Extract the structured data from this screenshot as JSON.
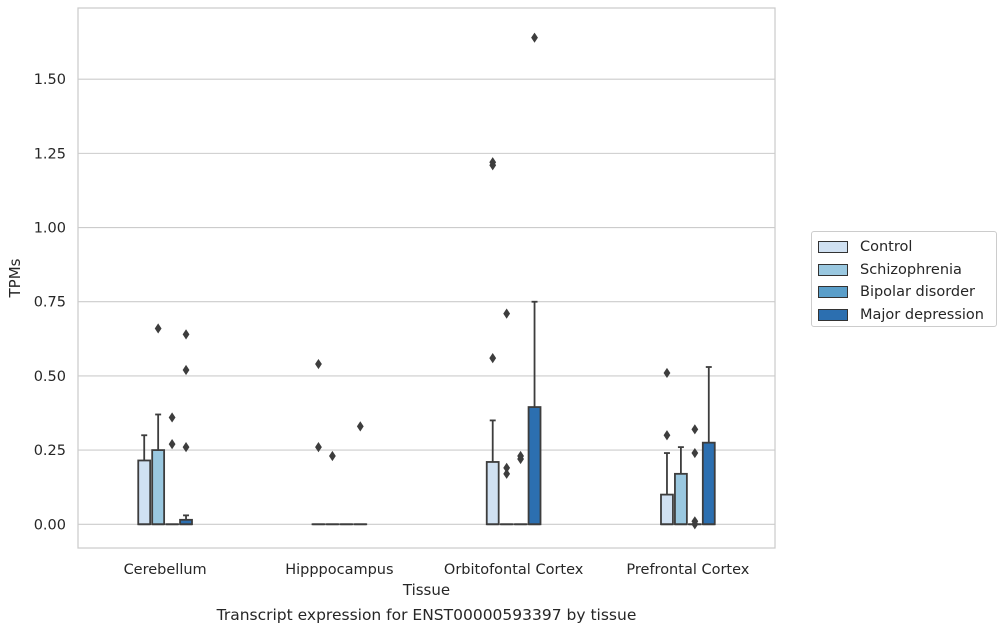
{
  "chart_data": {
    "type": "box",
    "xlabel": "Tissue",
    "ylabel": "TPMs",
    "caption": "Transcript expression for ENST00000593397 by tissue",
    "categories": [
      "Cerebellum",
      "Hipppocampus",
      "Orbitofontal Cortex",
      "Prefrontal Cortex"
    ],
    "ylim": [
      -0.08,
      1.74
    ],
    "yticks": [
      0.0,
      0.25,
      0.5,
      0.75,
      1.0,
      1.25,
      1.5
    ],
    "ytick_labels": [
      "0.00",
      "0.25",
      "0.50",
      "0.75",
      "1.00",
      "1.25",
      "1.50"
    ],
    "grid": true,
    "legend_position": "right, outside plot",
    "series": [
      {
        "name": "Control",
        "color": "#d0e1f2",
        "boxes": [
          {
            "q1": 0.0,
            "median": 0.0,
            "q3": 0.215,
            "whisker_low": 0.0,
            "whisker_high": 0.3,
            "outliers": []
          },
          {
            "q1": 0.0,
            "median": 0.0,
            "q3": 0.0,
            "whisker_low": 0.0,
            "whisker_high": 0.0,
            "outliers": [
              0.54,
              0.26
            ]
          },
          {
            "q1": 0.0,
            "median": 0.0,
            "q3": 0.21,
            "whisker_low": 0.0,
            "whisker_high": 0.35,
            "outliers": [
              1.22,
              1.21,
              0.56
            ]
          },
          {
            "q1": 0.0,
            "median": 0.0,
            "q3": 0.1,
            "whisker_low": 0.0,
            "whisker_high": 0.24,
            "outliers": [
              0.51,
              0.3
            ]
          }
        ]
      },
      {
        "name": "Schizophrenia",
        "color": "#9ac8e0",
        "boxes": [
          {
            "q1": 0.0,
            "median": 0.0,
            "q3": 0.25,
            "whisker_low": 0.0,
            "whisker_high": 0.37,
            "outliers": [
              0.66
            ]
          },
          {
            "q1": 0.0,
            "median": 0.0,
            "q3": 0.0,
            "whisker_low": 0.0,
            "whisker_high": 0.0,
            "outliers": [
              0.23
            ]
          },
          {
            "q1": 0.0,
            "median": 0.0,
            "q3": 0.0,
            "whisker_low": 0.0,
            "whisker_high": 0.0,
            "outliers": [
              0.71,
              0.19,
              0.17
            ]
          },
          {
            "q1": 0.0,
            "median": 0.0,
            "q3": 0.17,
            "whisker_low": 0.0,
            "whisker_high": 0.26,
            "outliers": []
          }
        ]
      },
      {
        "name": "Bipolar disorder",
        "color": "#5a9ec9",
        "boxes": [
          {
            "q1": 0.0,
            "median": 0.0,
            "q3": 0.0,
            "whisker_low": 0.0,
            "whisker_high": 0.0,
            "outliers": [
              0.36,
              0.27
            ]
          },
          {
            "q1": 0.0,
            "median": 0.0,
            "q3": 0.0,
            "whisker_low": 0.0,
            "whisker_high": 0.0,
            "outliers": []
          },
          {
            "q1": 0.0,
            "median": 0.0,
            "q3": 0.0,
            "whisker_low": 0.0,
            "whisker_high": 0.0,
            "outliers": [
              0.23,
              0.22
            ]
          },
          {
            "q1": 0.0,
            "median": 0.0,
            "q3": 0.0,
            "whisker_low": 0.0,
            "whisker_high": 0.0,
            "outliers": [
              0.32,
              0.24,
              0.01,
              0.0
            ]
          }
        ]
      },
      {
        "name": "Major depression",
        "color": "#2c6fb0",
        "boxes": [
          {
            "q1": 0.0,
            "median": 0.0,
            "q3": 0.015,
            "whisker_low": 0.0,
            "whisker_high": 0.03,
            "outliers": [
              0.64,
              0.52,
              0.26
            ]
          },
          {
            "q1": 0.0,
            "median": 0.0,
            "q3": 0.0,
            "whisker_low": 0.0,
            "whisker_high": 0.0,
            "outliers": [
              0.33
            ]
          },
          {
            "q1": 0.0,
            "median": 0.0,
            "q3": 0.395,
            "whisker_low": 0.0,
            "whisker_high": 0.75,
            "outliers": [
              1.64
            ]
          },
          {
            "q1": 0.0,
            "median": 0.0,
            "q3": 0.275,
            "whisker_low": 0.0,
            "whisker_high": 0.53,
            "outliers": []
          }
        ]
      }
    ]
  }
}
